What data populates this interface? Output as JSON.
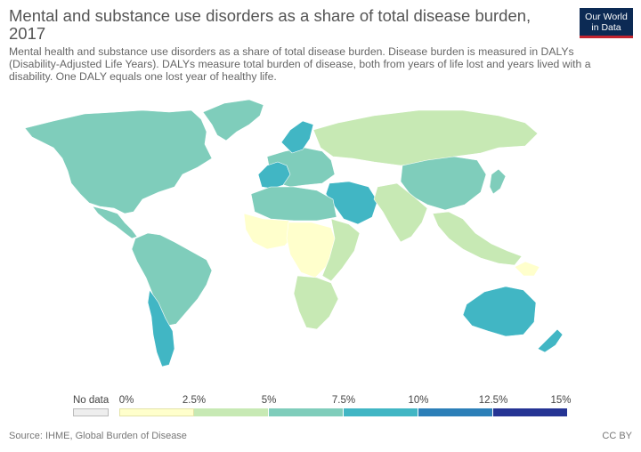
{
  "header": {
    "title": "Mental and substance use disorders as a share of total disease burden, 2017",
    "subtitle": "Mental health and substance use disorders as a share of total disease burden. Disease burden is measured in DALYs (Disability-Adjusted Life Years). DALYs measure total burden of disease, both from years of life lost and years lived with a disability. One DALY equals one lost year of healthy life.",
    "logo_line1": "Our World",
    "logo_line2": "in Data"
  },
  "legend": {
    "no_data_label": "No data",
    "no_data_color": "#eeeeee",
    "ticks": [
      "0%",
      "2.5%",
      "5%",
      "7.5%",
      "10%",
      "12.5%",
      "15%"
    ],
    "bins": [
      {
        "from": 0,
        "to": 2.5,
        "color": "#ffffcc"
      },
      {
        "from": 2.5,
        "to": 5,
        "color": "#c7e9b4"
      },
      {
        "from": 5,
        "to": 7.5,
        "color": "#7fcdbb"
      },
      {
        "from": 7.5,
        "to": 10,
        "color": "#41b6c4"
      },
      {
        "from": 10,
        "to": 12.5,
        "color": "#2c7fb8"
      },
      {
        "from": 12.5,
        "to": 15,
        "color": "#253494"
      }
    ]
  },
  "footer": {
    "source": "Source: IHME, Global Burden of Disease",
    "license": "CC BY"
  },
  "regions": [
    {
      "name": "North America",
      "color": "#7fcdbb"
    },
    {
      "name": "Greenland",
      "color": "#7fcdbb"
    },
    {
      "name": "Central America",
      "color": "#7fcdbb"
    },
    {
      "name": "South America",
      "color": "#7fcdbb"
    },
    {
      "name": "Southern Cone",
      "color": "#41b6c4"
    },
    {
      "name": "Europe",
      "color": "#7fcdbb"
    },
    {
      "name": "Western Europe",
      "color": "#41b6c4"
    },
    {
      "name": "Scandinavia",
      "color": "#41b6c4"
    },
    {
      "name": "Russia",
      "color": "#c7e9b4"
    },
    {
      "name": "China",
      "color": "#7fcdbb"
    },
    {
      "name": "Japan",
      "color": "#7fcdbb"
    },
    {
      "name": "Middle East",
      "color": "#41b6c4"
    },
    {
      "name": "South Asia",
      "color": "#c7e9b4"
    },
    {
      "name": "Southeast Asia",
      "color": "#c7e9b4"
    },
    {
      "name": "North Africa",
      "color": "#7fcdbb"
    },
    {
      "name": "West Africa",
      "color": "#ffffcc"
    },
    {
      "name": "Central Africa",
      "color": "#ffffcc"
    },
    {
      "name": "East Africa",
      "color": "#c7e9b4"
    },
    {
      "name": "Southern Africa",
      "color": "#c7e9b4"
    },
    {
      "name": "Australia",
      "color": "#41b6c4"
    },
    {
      "name": "New Zealand",
      "color": "#41b6c4"
    },
    {
      "name": "Papua New Guinea",
      "color": "#ffffcc"
    }
  ]
}
